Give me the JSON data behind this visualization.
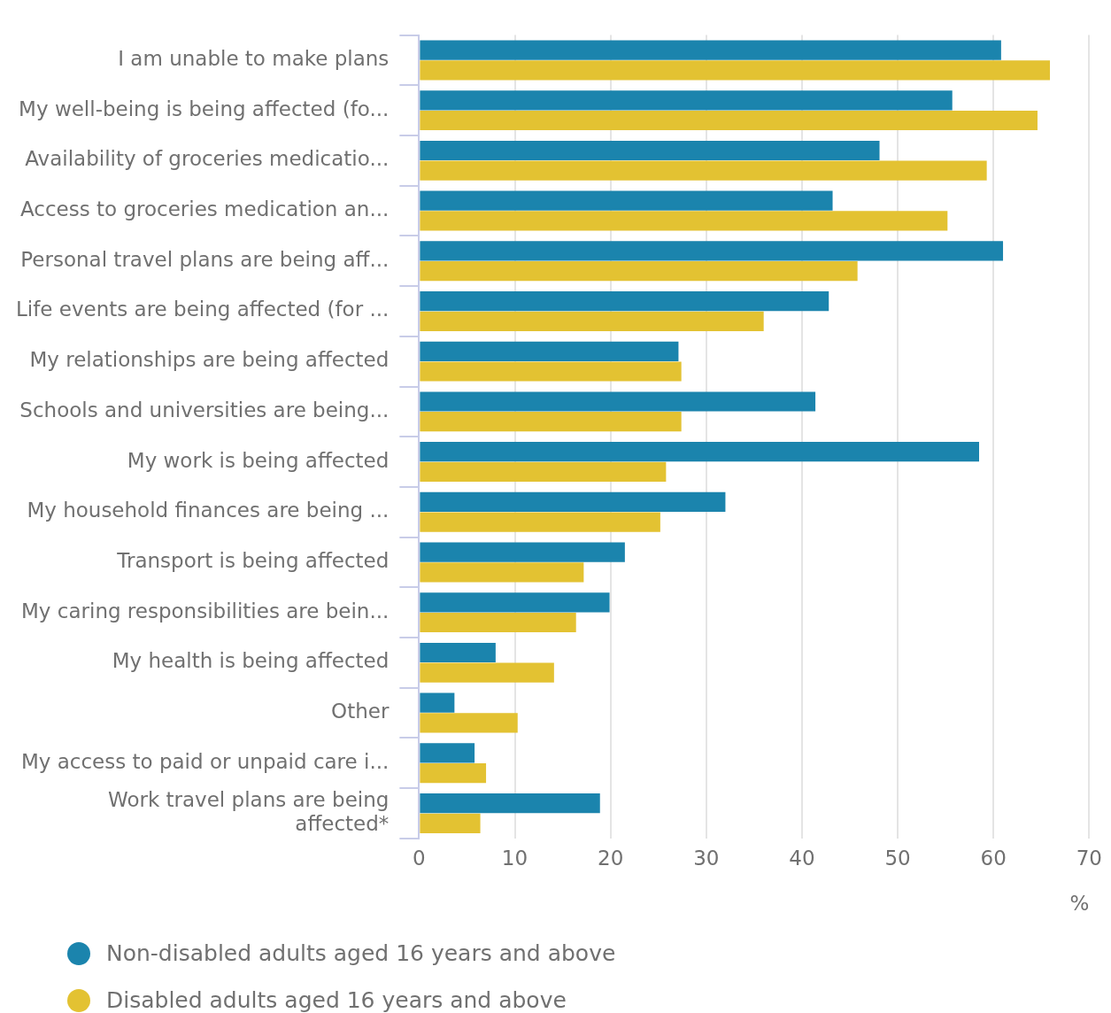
{
  "chart_data": {
    "type": "bar",
    "orientation": "horizontal",
    "xlabel": "%",
    "categories": [
      "I am unable to make plans",
      "My well-being is being affected (fo...",
      "Availability of groceries medicatio...",
      "Access to groceries medication an...",
      "Personal travel plans are being aff...",
      "Life events are being affected (for ...",
      "My relationships are being affected",
      "Schools and universities are being...",
      "My work is being affected",
      "My household finances are being ...",
      "Transport is being affected",
      "My caring responsibilities are bein...",
      "My health is being affected",
      "Other",
      "My access to paid or unpaid care i...",
      "Work travel plans are being affected*"
    ],
    "series": [
      {
        "name": "Non-disabled adults aged 16 years and above",
        "color": "#1b84ad",
        "values": [
          60.8,
          55.7,
          48.1,
          43.2,
          61.0,
          42.8,
          27.1,
          41.4,
          58.5,
          32.0,
          21.5,
          19.9,
          8.0,
          3.7,
          5.8,
          18.9
        ]
      },
      {
        "name": "Disabled adults aged 16 years and above",
        "color": "#e3c232",
        "values": [
          65.9,
          64.6,
          59.3,
          55.2,
          45.8,
          36.0,
          27.4,
          27.4,
          25.8,
          25.2,
          17.2,
          16.4,
          14.1,
          10.3,
          7.0,
          6.4
        ]
      }
    ],
    "xlim": [
      0,
      70
    ],
    "xticks": [
      0,
      10,
      20,
      30,
      40,
      50,
      60,
      70
    ],
    "grid": "x",
    "legend": "bottom left"
  }
}
